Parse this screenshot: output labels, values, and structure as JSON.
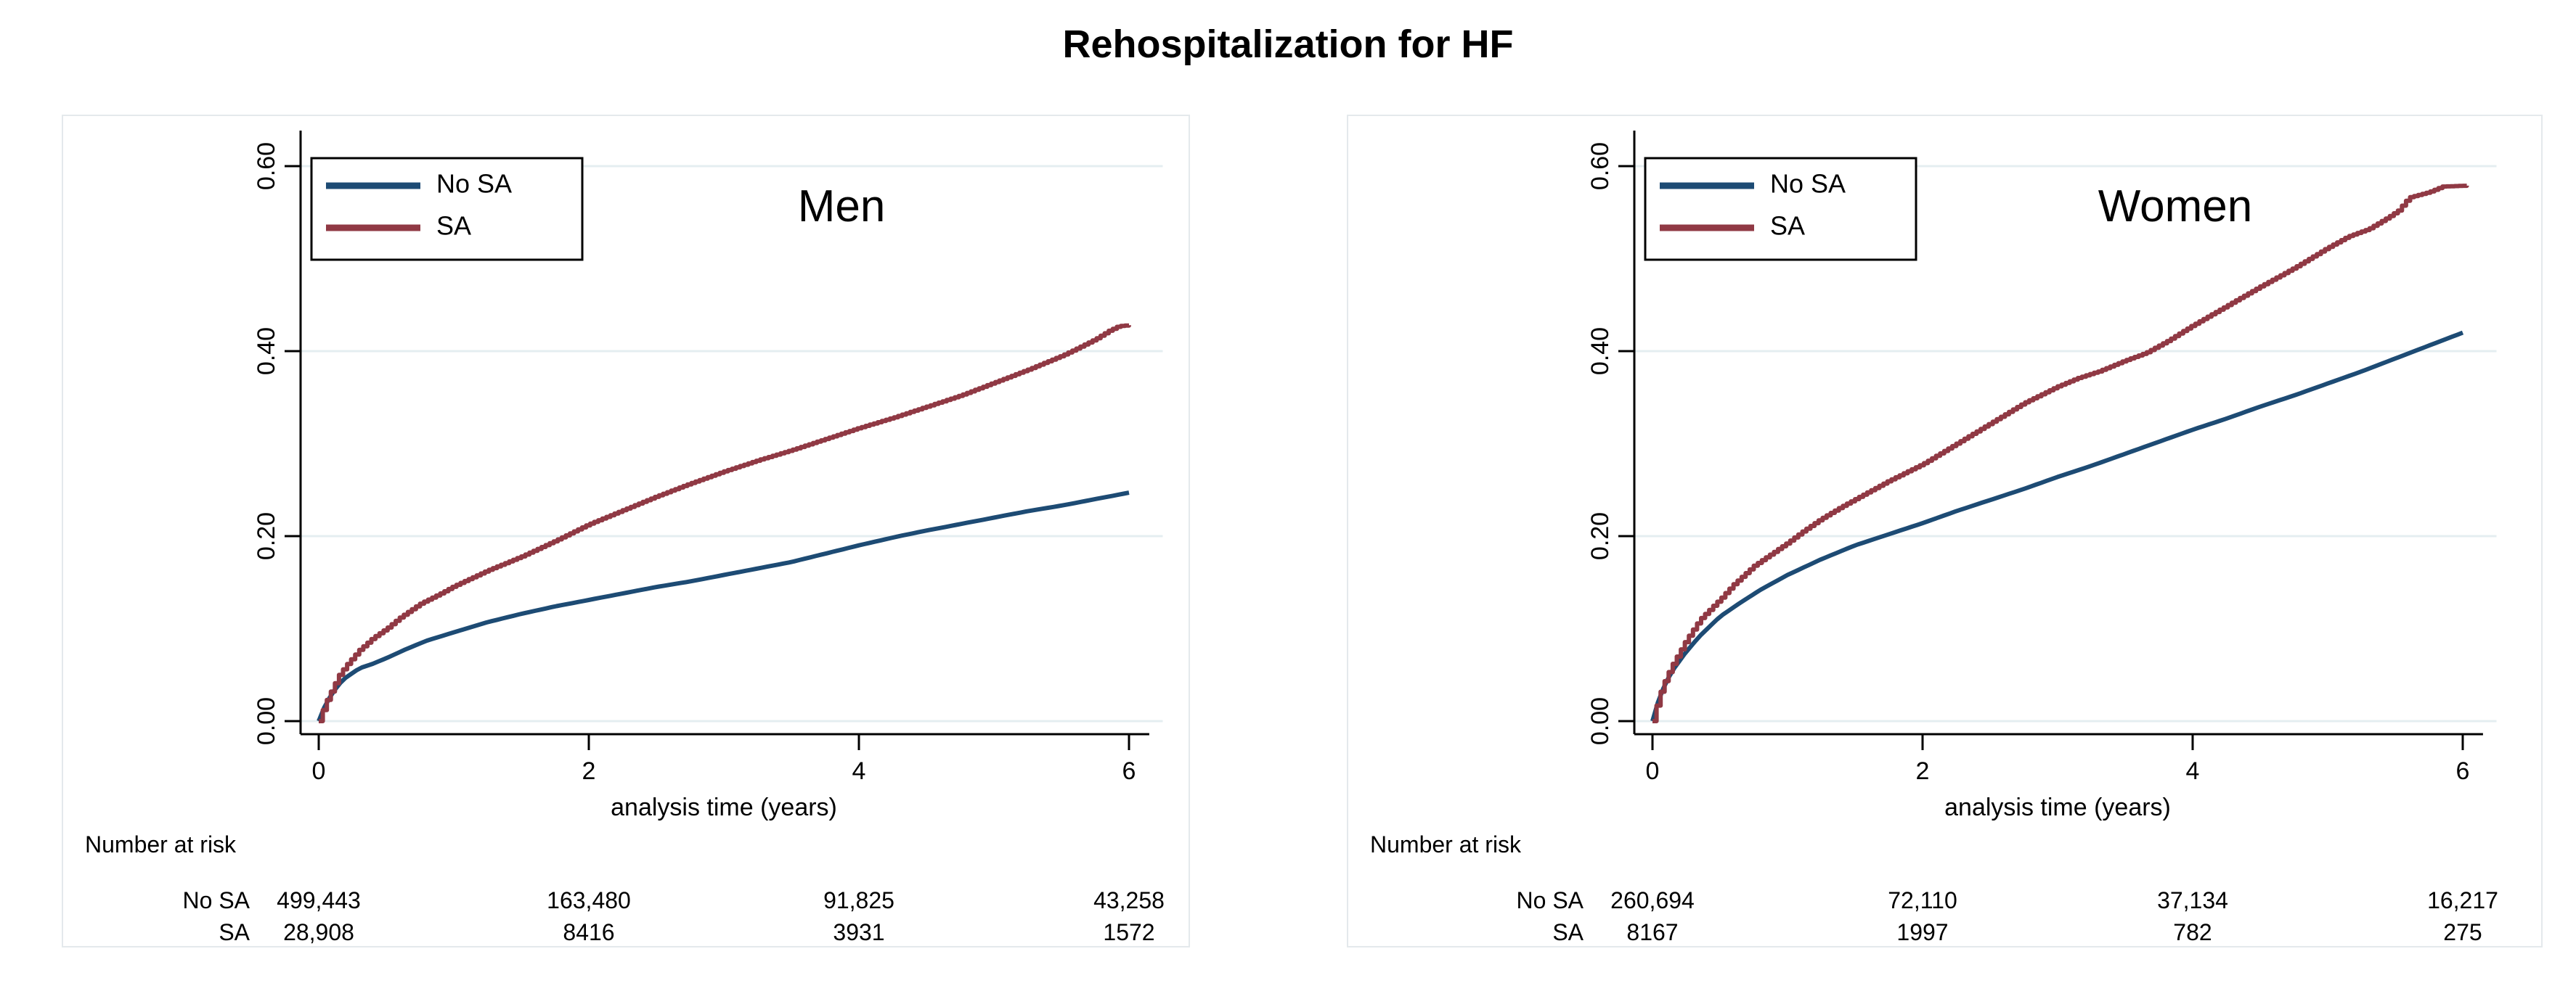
{
  "title": "Rehospitalization for HF",
  "colors": {
    "no_sa": "#1d4b74",
    "sa": "#903944",
    "grid": "#e4eef1",
    "axis": "#000000",
    "panel_border": "#e4e9ec"
  },
  "axis": {
    "xlabel": "analysis time (years)",
    "x_ticks": [
      "0",
      "2",
      "4",
      "6"
    ],
    "y_ticks": [
      "0.00",
      "0.20",
      "0.40",
      "0.60"
    ]
  },
  "legend": {
    "items": [
      {
        "label": "No SA"
      },
      {
        "label": "SA"
      }
    ]
  },
  "risk_header": "Number at risk",
  "chart_data": [
    {
      "type": "line",
      "title": "Men",
      "xlabel": "analysis time (years)",
      "x_tick_values": [
        0,
        2,
        4,
        6
      ],
      "y_tick_values": [
        0.0,
        0.2,
        0.4,
        0.6
      ],
      "xlim": [
        0,
        6.1
      ],
      "ylim": [
        0,
        0.62
      ],
      "grid": true,
      "legend_position": "top-left",
      "series": [
        {
          "name": "No SA",
          "style": "smooth",
          "points": [
            [
              0,
              0
            ],
            [
              0.05,
              0.018
            ],
            [
              0.1,
              0.03
            ],
            [
              0.15,
              0.04
            ],
            [
              0.2,
              0.047
            ],
            [
              0.3,
              0.057
            ],
            [
              0.4,
              0.062
            ],
            [
              0.5,
              0.068
            ],
            [
              0.65,
              0.078
            ],
            [
              0.8,
              0.087
            ],
            [
              1,
              0.096
            ],
            [
              1.25,
              0.107
            ],
            [
              1.5,
              0.116
            ],
            [
              1.75,
              0.124
            ],
            [
              2,
              0.131
            ],
            [
              2.25,
              0.138
            ],
            [
              2.5,
              0.145
            ],
            [
              2.75,
              0.151
            ],
            [
              3,
              0.158
            ],
            [
              3.25,
              0.165
            ],
            [
              3.5,
              0.172
            ],
            [
              3.75,
              0.181
            ],
            [
              4,
              0.19
            ],
            [
              4.3,
              0.2
            ],
            [
              4.5,
              0.206
            ],
            [
              4.75,
              0.213
            ],
            [
              5,
              0.22
            ],
            [
              5.25,
              0.227
            ],
            [
              5.5,
              0.233
            ],
            [
              5.75,
              0.24
            ],
            [
              6,
              0.247
            ]
          ]
        },
        {
          "name": "SA",
          "style": "step",
          "points": [
            [
              0,
              0
            ],
            [
              0.05,
              0.02
            ],
            [
              0.1,
              0.035
            ],
            [
              0.15,
              0.05
            ],
            [
              0.2,
              0.06
            ],
            [
              0.3,
              0.077
            ],
            [
              0.4,
              0.09
            ],
            [
              0.5,
              0.1
            ],
            [
              0.6,
              0.112
            ],
            [
              0.75,
              0.127
            ],
            [
              0.9,
              0.138
            ],
            [
              1,
              0.146
            ],
            [
              1.25,
              0.163
            ],
            [
              1.5,
              0.178
            ],
            [
              1.75,
              0.195
            ],
            [
              2,
              0.213
            ],
            [
              2.25,
              0.228
            ],
            [
              2.5,
              0.243
            ],
            [
              2.75,
              0.257
            ],
            [
              3,
              0.27
            ],
            [
              3.25,
              0.282
            ],
            [
              3.5,
              0.293
            ],
            [
              3.75,
              0.305
            ],
            [
              4,
              0.317
            ],
            [
              4.25,
              0.328
            ],
            [
              4.5,
              0.34
            ],
            [
              4.75,
              0.352
            ],
            [
              5,
              0.366
            ],
            [
              5.25,
              0.38
            ],
            [
              5.5,
              0.395
            ],
            [
              5.6,
              0.402
            ],
            [
              5.75,
              0.413
            ],
            [
              5.85,
              0.422
            ],
            [
              5.92,
              0.427
            ],
            [
              6.0,
              0.428
            ]
          ]
        }
      ],
      "risk_table": {
        "rows": [
          {
            "name": "No SA",
            "values": [
              "499,443",
              "163,480",
              "91,825",
              "43,258"
            ]
          },
          {
            "name": "SA",
            "values": [
              "28,908",
              "8416",
              "3931",
              "1572"
            ]
          }
        ]
      }
    },
    {
      "type": "line",
      "title": "Women",
      "xlabel": "analysis time (years)",
      "x_tick_values": [
        0,
        2,
        4,
        6
      ],
      "y_tick_values": [
        0.0,
        0.2,
        0.4,
        0.6
      ],
      "xlim": [
        0,
        6.1
      ],
      "ylim": [
        0,
        0.62
      ],
      "grid": true,
      "legend_position": "top-left",
      "series": [
        {
          "name": "No SA",
          "style": "smooth",
          "points": [
            [
              0,
              0
            ],
            [
              0.05,
              0.025
            ],
            [
              0.1,
              0.042
            ],
            [
              0.15,
              0.055
            ],
            [
              0.2,
              0.065
            ],
            [
              0.25,
              0.075
            ],
            [
              0.35,
              0.092
            ],
            [
              0.5,
              0.113
            ],
            [
              0.65,
              0.128
            ],
            [
              0.8,
              0.142
            ],
            [
              1,
              0.158
            ],
            [
              1.25,
              0.175
            ],
            [
              1.5,
              0.19
            ],
            [
              1.75,
              0.202
            ],
            [
              2,
              0.214
            ],
            [
              2.25,
              0.227
            ],
            [
              2.5,
              0.239
            ],
            [
              2.75,
              0.251
            ],
            [
              3,
              0.264
            ],
            [
              3.25,
              0.276
            ],
            [
              3.5,
              0.289
            ],
            [
              3.75,
              0.302
            ],
            [
              4,
              0.315
            ],
            [
              4.25,
              0.327
            ],
            [
              4.5,
              0.34
            ],
            [
              4.75,
              0.352
            ],
            [
              5,
              0.365
            ],
            [
              5.25,
              0.378
            ],
            [
              5.5,
              0.392
            ],
            [
              5.75,
              0.406
            ],
            [
              6,
              0.42
            ]
          ]
        },
        {
          "name": "SA",
          "style": "step",
          "points": [
            [
              0,
              0
            ],
            [
              0.05,
              0.028
            ],
            [
              0.1,
              0.047
            ],
            [
              0.15,
              0.062
            ],
            [
              0.2,
              0.075
            ],
            [
              0.25,
              0.088
            ],
            [
              0.35,
              0.11
            ],
            [
              0.5,
              0.132
            ],
            [
              0.6,
              0.148
            ],
            [
              0.75,
              0.168
            ],
            [
              0.9,
              0.183
            ],
            [
              1,
              0.193
            ],
            [
              1.1,
              0.204
            ],
            [
              1.25,
              0.219
            ],
            [
              1.4,
              0.232
            ],
            [
              1.5,
              0.24
            ],
            [
              1.75,
              0.26
            ],
            [
              2,
              0.278
            ],
            [
              2.25,
              0.3
            ],
            [
              2.5,
              0.322
            ],
            [
              2.75,
              0.344
            ],
            [
              3,
              0.362
            ],
            [
              3.15,
              0.371
            ],
            [
              3.3,
              0.378
            ],
            [
              3.5,
              0.39
            ],
            [
              3.65,
              0.398
            ],
            [
              3.8,
              0.41
            ],
            [
              4,
              0.428
            ],
            [
              4.25,
              0.449
            ],
            [
              4.5,
              0.47
            ],
            [
              4.75,
              0.49
            ],
            [
              5,
              0.512
            ],
            [
              5.15,
              0.524
            ],
            [
              5.3,
              0.532
            ],
            [
              5.45,
              0.545
            ],
            [
              5.52,
              0.552
            ],
            [
              5.6,
              0.566
            ],
            [
              5.75,
              0.572
            ],
            [
              5.85,
              0.578
            ],
            [
              6.05,
              0.579
            ]
          ]
        }
      ],
      "risk_table": {
        "rows": [
          {
            "name": "No SA",
            "values": [
              "260,694",
              "72,110",
              "37,134",
              "16,217"
            ]
          },
          {
            "name": "SA",
            "values": [
              "8167",
              "1997",
              "782",
              "275"
            ]
          }
        ]
      }
    }
  ]
}
